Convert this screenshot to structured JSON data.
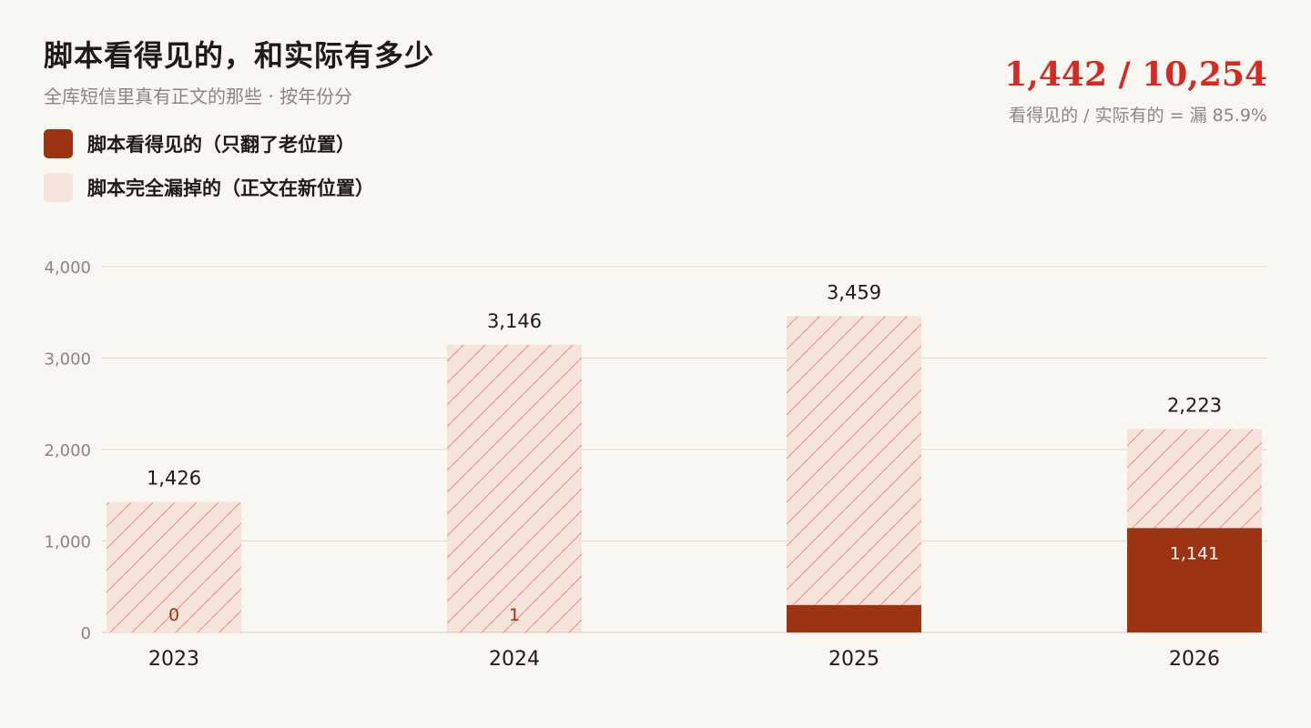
{
  "header": {
    "title": "脚本看得见的，和实际有多少",
    "subtitle": "全库短信里真有正文的那些 · 按年份分"
  },
  "kpi": {
    "value": "1,442 / 10,254",
    "caption": "看得见的 / 实际有的 = 漏 85.9%"
  },
  "legend": [
    {
      "label": "脚本看得见的（只翻了老位置）",
      "color": "#9c3414"
    },
    {
      "label": "脚本完全漏掉的（正文在新位置）",
      "color": "#f5e4db"
    }
  ],
  "colors": {
    "seen": "#9c3414",
    "missed_fill": "#f5e4db",
    "missed_hatch": "#ec9a94",
    "grid": "#e3ded4",
    "tick_text": "#8a8580",
    "label_text": "#1f1a17"
  },
  "chart_data": {
    "type": "bar",
    "stacked": true,
    "categories": [
      "2023",
      "2024",
      "2025",
      "2026"
    ],
    "totals": [
      1426,
      3146,
      3459,
      2223
    ],
    "total_labels": [
      "1,426",
      "3,146",
      "3,459",
      "2,223"
    ],
    "series": [
      {
        "name": "脚本看得见的（只翻了老位置）",
        "values": [
          0,
          1,
          300,
          1141
        ]
      },
      {
        "name": "脚本完全漏掉的（正文在新位置）",
        "values": [
          1426,
          3145,
          3159,
          1082
        ]
      }
    ],
    "seen_labels": [
      "0",
      "1",
      "",
      "1,141"
    ],
    "ylim": [
      0,
      4000
    ],
    "yticks": [
      0,
      1000,
      2000,
      3000,
      4000
    ],
    "ytick_labels": [
      "0",
      "1,000",
      "2,000",
      "3,000",
      "4,000"
    ],
    "grid": true,
    "legend_position": "top-left"
  }
}
